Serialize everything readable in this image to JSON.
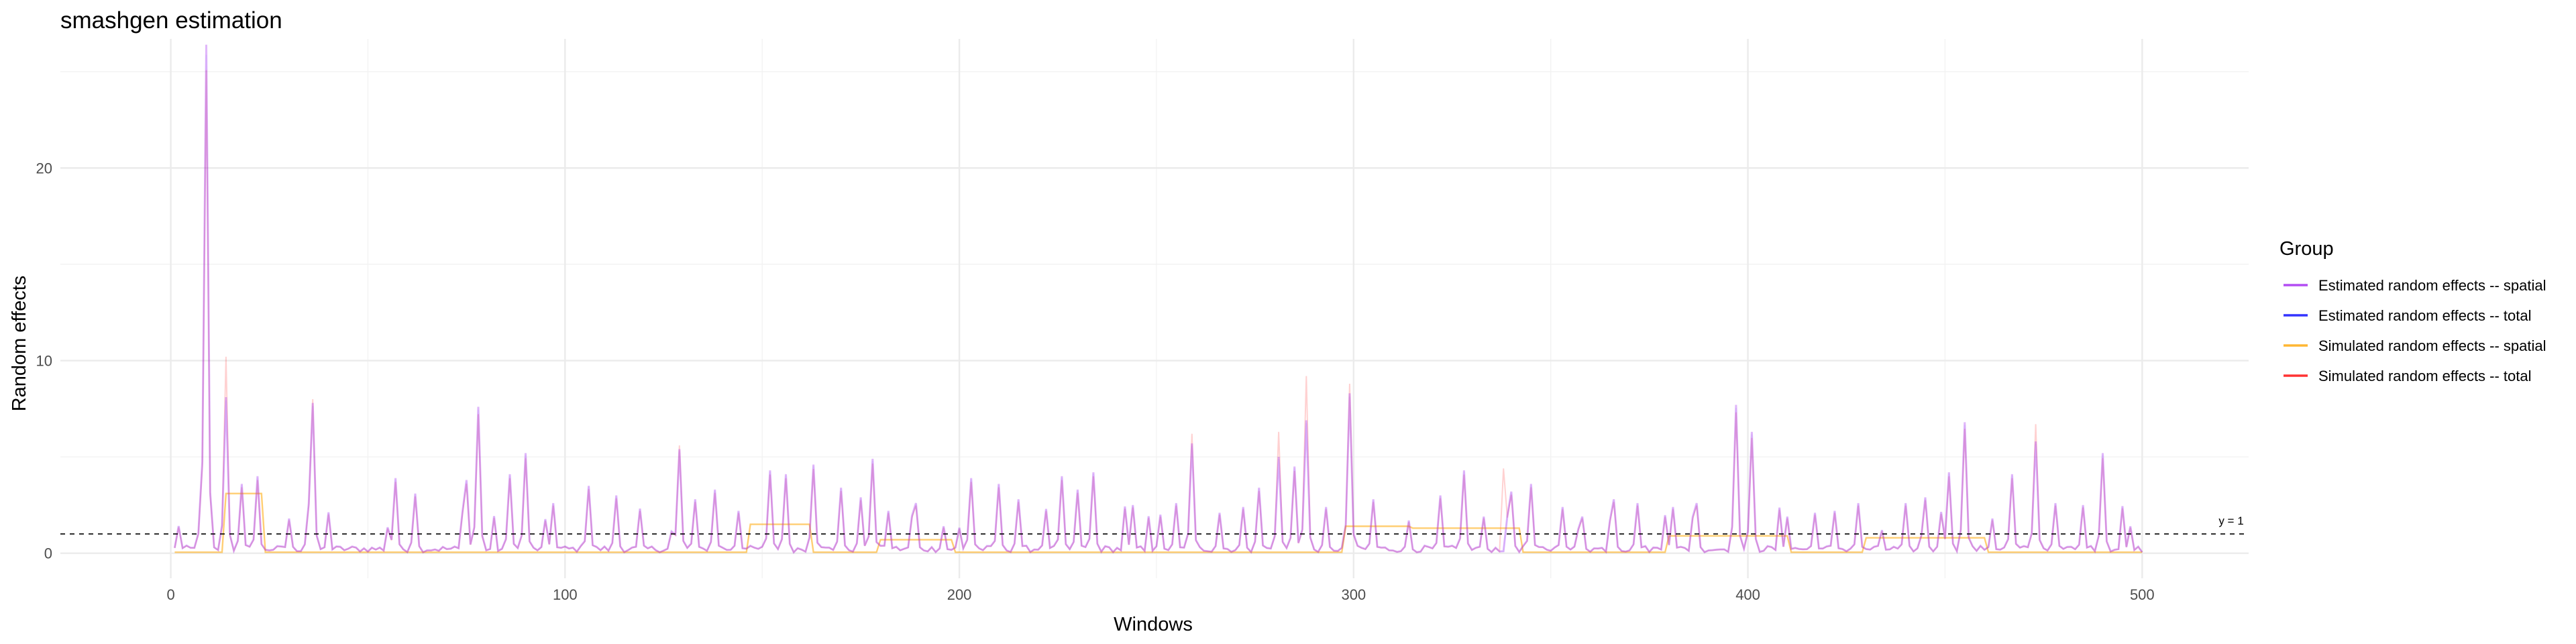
{
  "chart_data": {
    "type": "line",
    "title": "smashgen estimation",
    "xlabel": "Windows",
    "ylabel": "Random effects",
    "xlim": [
      -28,
      527
    ],
    "ylim": [
      -1.3,
      26.7
    ],
    "x_ticks": [
      0,
      100,
      200,
      300,
      400,
      500
    ],
    "y_ticks": [
      0,
      10,
      20
    ],
    "grid": true,
    "legend_position": "right",
    "legend_title": "Group",
    "reference_line": {
      "y": 1,
      "label": "y = 1",
      "style": "dashed"
    },
    "series": [
      {
        "name": "Estimated random effects -- spatial",
        "color": "#a020f0",
        "alpha": 0.3
      },
      {
        "name": "Estimated random effects -- total",
        "color": "#0000ff",
        "alpha": 0.3
      },
      {
        "name": "Simulated random effects -- spatial",
        "color": "#ffa500",
        "alpha": 0.3
      },
      {
        "name": "Simulated random effects -- total",
        "color": "#ff0000",
        "alpha": 0.3
      }
    ],
    "peaks": {
      "x": [
        9,
        14,
        18,
        22,
        30,
        35,
        36,
        57,
        62,
        75,
        78,
        86,
        90,
        97,
        106,
        113,
        129,
        133,
        138,
        144,
        152,
        156,
        163,
        170,
        175,
        178,
        182,
        189,
        196,
        203,
        210,
        215,
        222,
        226,
        230,
        234,
        244,
        251,
        255,
        259,
        266,
        272,
        276,
        281,
        285,
        288,
        293,
        299,
        305,
        314,
        322,
        328,
        333,
        340,
        345,
        353,
        358,
        366,
        372,
        381,
        387,
        397,
        401,
        410,
        417,
        422,
        428,
        434,
        440,
        445,
        451,
        455,
        462,
        467,
        473,
        478,
        485,
        490,
        497
      ],
      "y": [
        26.4,
        8.1,
        3.6,
        4.0,
        1.8,
        2.6,
        7.8,
        3.9,
        3.1,
        3.8,
        7.6,
        4.1,
        5.2,
        2.6,
        3.5,
        3.0,
        5.4,
        2.8,
        3.3,
        2.2,
        4.3,
        4.1,
        4.6,
        3.4,
        2.9,
        4.9,
        2.2,
        2.6,
        1.4,
        3.9,
        3.6,
        2.8,
        2.3,
        4.0,
        3.3,
        4.2,
        2.5,
        2.0,
        2.6,
        5.7,
        2.1,
        2.4,
        3.4,
        5.0,
        4.5,
        6.9,
        2.4,
        8.3,
        2.8,
        1.7,
        3.0,
        4.3,
        1.9,
        3.2,
        3.6,
        2.4,
        1.9,
        2.8,
        2.6,
        2.4,
        2.6,
        7.7,
        6.3,
        1.9,
        2.1,
        2.2,
        2.6,
        1.2,
        2.6,
        2.9,
        4.2,
        6.8,
        1.8,
        4.1,
        5.8,
        2.6,
        2.5,
        5.2,
        1.4
      ]
    },
    "simulated_spatial_segments": [
      {
        "x": [
          14,
          23
        ],
        "y": 3.1
      },
      {
        "x": [
          147,
          162
        ],
        "y": 1.5
      },
      {
        "x": [
          180,
          198
        ],
        "y": 0.7
      },
      {
        "x": [
          298,
          314
        ],
        "y": 1.4
      },
      {
        "x": [
          315,
          342
        ],
        "y": 1.3
      },
      {
        "x": [
          380,
          410
        ],
        "y": 0.9
      },
      {
        "x": [
          430,
          460
        ],
        "y": 0.8
      }
    ],
    "simulated_total_spikes": {
      "x": [
        14,
        36,
        129,
        259,
        281,
        288,
        299,
        338,
        473
      ],
      "y": [
        10.2,
        8.0,
        5.6,
        6.2,
        6.3,
        9.2,
        8.8,
        4.4,
        6.7
      ]
    }
  }
}
